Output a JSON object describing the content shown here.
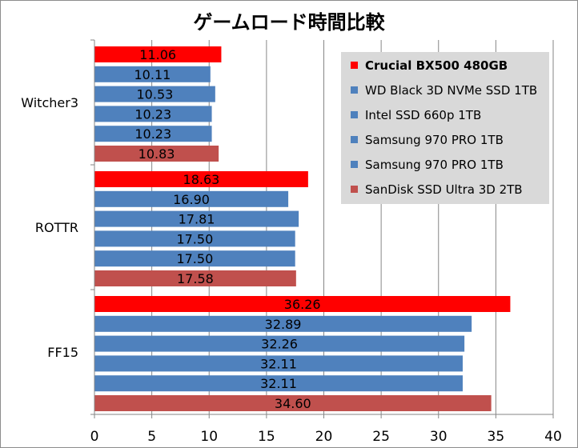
{
  "chart_data": {
    "type": "bar",
    "orientation": "horizontal",
    "title": "ゲームロード時間比較",
    "categories": [
      "Witcher3",
      "ROTTR",
      "FF15"
    ],
    "series": [
      {
        "name": "Crucial BX500 480GB",
        "color": "#ff0000",
        "values": [
          11.06,
          18.63,
          36.26
        ],
        "labels": [
          "11.06",
          "18.63",
          "36.26"
        ]
      },
      {
        "name": "WD Black 3D NVMe SSD 1TB",
        "color": "#4f81bd",
        "values": [
          10.11,
          16.9,
          32.89
        ],
        "labels": [
          "10.11",
          "16.90",
          "32.89"
        ]
      },
      {
        "name": "Intel SSD 660p 1TB",
        "color": "#4f81bd",
        "values": [
          10.53,
          17.81,
          32.26
        ],
        "labels": [
          "10.53",
          "17.81",
          "32.26"
        ]
      },
      {
        "name": "Samsung 970 PRO 1TB",
        "color": "#4f81bd",
        "values": [
          10.23,
          17.5,
          32.11
        ],
        "labels": [
          "10.23",
          "17.50",
          "32.11"
        ]
      },
      {
        "name": "Samsung 970 PRO 1TB",
        "color": "#4f81bd",
        "values": [
          10.23,
          17.5,
          32.11
        ],
        "labels": [
          "10.23",
          "17.50",
          "32.11"
        ]
      },
      {
        "name": "SanDisk SSD Ultra 3D 2TB",
        "color": "#c0504d",
        "values": [
          10.83,
          17.58,
          34.6
        ],
        "labels": [
          "10.83",
          "17.58",
          "34.60"
        ]
      }
    ],
    "xlim": [
      0,
      40
    ],
    "xticks": [
      "0",
      "5",
      "10",
      "15",
      "20",
      "25",
      "30",
      "35",
      "40"
    ],
    "xlabel": "",
    "ylabel": "",
    "grid": "vertical",
    "legend_position": "top-right",
    "legend_bold_first": true,
    "legend_bg": "#d9d9d9",
    "grid_color": "#868686"
  }
}
